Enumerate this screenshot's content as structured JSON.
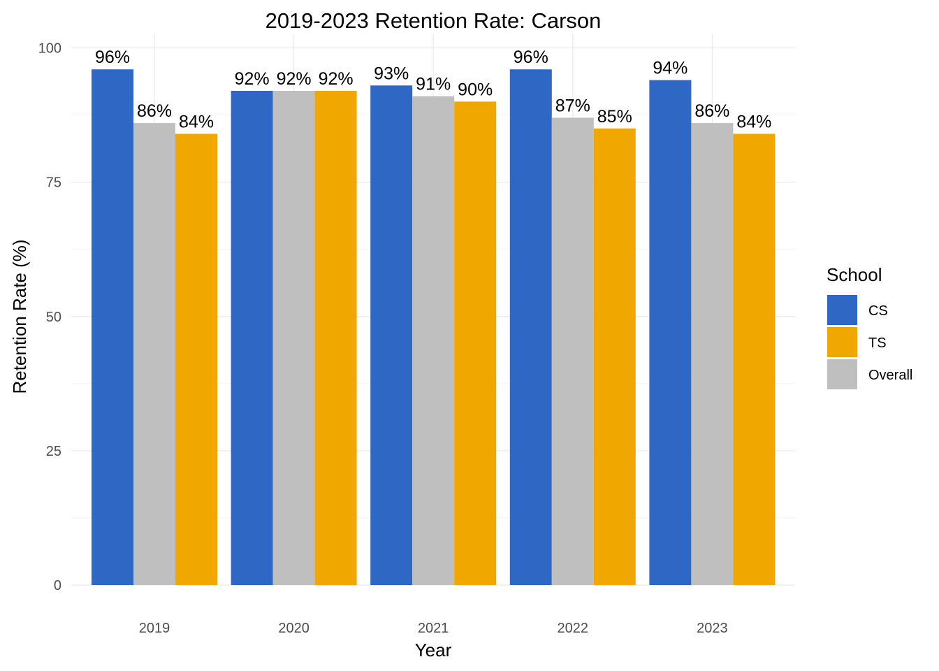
{
  "chart_data": {
    "type": "bar",
    "title": "2019-2023 Retention Rate: Carson",
    "xlabel": "Year",
    "ylabel": "Retention Rate (%)",
    "categories": [
      "2019",
      "2020",
      "2021",
      "2022",
      "2023"
    ],
    "ylim": [
      0,
      100
    ],
    "yticks": [
      "0",
      "25",
      "50",
      "75",
      "100"
    ],
    "grid": true,
    "series": [
      {
        "name": "CS",
        "color": "#2e68c4",
        "values": [
          96,
          92,
          93,
          96,
          94
        ],
        "labels": [
          "96%",
          "92%",
          "93%",
          "96%",
          "94%"
        ]
      },
      {
        "name": "Overall",
        "color": "#bfbfbf",
        "values": [
          86,
          92,
          91,
          87,
          86
        ],
        "labels": [
          "86%",
          "92%",
          "91%",
          "87%",
          "86%"
        ]
      },
      {
        "name": "TS",
        "color": "#f0a800",
        "values": [
          84,
          92,
          90,
          85,
          84
        ],
        "labels": [
          "84%",
          "92%",
          "90%",
          "85%",
          "84%"
        ]
      }
    ],
    "legend": {
      "title": "School",
      "position": "right",
      "items": [
        {
          "label": "CS",
          "color": "#2e68c4"
        },
        {
          "label": "TS",
          "color": "#f0a800"
        },
        {
          "label": "Overall",
          "color": "#bfbfbf"
        }
      ]
    }
  }
}
